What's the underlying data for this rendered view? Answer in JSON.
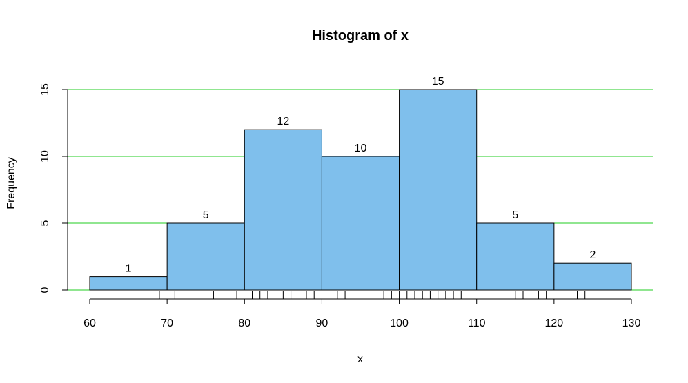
{
  "chart_data": {
    "type": "bar",
    "title": "Histogram of x",
    "xlabel": "x",
    "ylabel": "Frequency",
    "bins": [
      [
        60,
        70
      ],
      [
        70,
        80
      ],
      [
        80,
        90
      ],
      [
        90,
        100
      ],
      [
        100,
        110
      ],
      [
        110,
        120
      ],
      [
        120,
        130
      ]
    ],
    "values": [
      1,
      5,
      12,
      10,
      15,
      5,
      2
    ],
    "data_labels": [
      "1",
      "5",
      "12",
      "10",
      "15",
      "5",
      "2"
    ],
    "xlim": [
      60,
      130
    ],
    "ylim": [
      0,
      15
    ],
    "x_ticks": [
      60,
      70,
      80,
      90,
      100,
      110,
      120,
      130
    ],
    "x_tick_labels": [
      "60",
      "70",
      "80",
      "90",
      "100",
      "110",
      "120",
      "130"
    ],
    "y_ticks": [
      0,
      5,
      10,
      15
    ],
    "y_tick_labels": [
      "0",
      "5",
      "10",
      "15"
    ],
    "grid_lines_y": [
      0,
      5,
      10,
      15
    ],
    "grid": true,
    "rug": [
      69,
      71,
      76,
      79,
      81,
      82,
      83,
      85,
      86,
      88,
      89,
      92,
      93,
      98,
      99,
      100,
      101,
      102,
      103,
      104,
      105,
      106,
      107,
      108,
      109,
      115,
      116,
      118,
      119,
      123,
      124
    ],
    "colors": {
      "bar_fill": "#7fbfec",
      "bar_stroke": "#000000",
      "grid": "#22cc22",
      "axis": "#000000"
    }
  }
}
